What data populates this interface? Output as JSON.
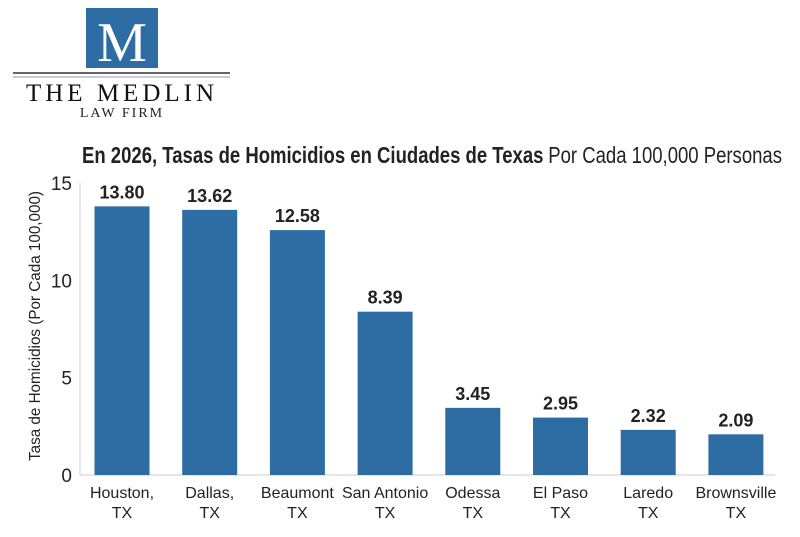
{
  "logo": {
    "monogram": "M",
    "name": "THE MEDLIN",
    "subtitle": "LAW FIRM",
    "color": "#2e6da4"
  },
  "chart_data": {
    "type": "bar",
    "title_bold": "En 2026, Tasas de Homicidios en Ciudades de Texas",
    "title_regular": "Por Cada 100,000 Personas",
    "xlabel": "",
    "ylabel": "Tasa de Homicidios (Por Cada 100,000)",
    "ylim": [
      0,
      15
    ],
    "yticks": [
      "0",
      "5",
      "10",
      "15"
    ],
    "grid": false,
    "bar_color": "#2e6da4",
    "categories": [
      [
        "Houston,",
        "TX"
      ],
      [
        "Dallas,",
        "TX"
      ],
      [
        "Beaumont",
        "TX"
      ],
      [
        "San Antonio",
        "TX"
      ],
      [
        "Odessa",
        "TX"
      ],
      [
        "El Paso",
        "TX"
      ],
      [
        "Laredo",
        "TX"
      ],
      [
        "Brownsville",
        "TX"
      ]
    ],
    "values": [
      13.8,
      13.62,
      12.58,
      8.39,
      3.45,
      2.95,
      2.32,
      2.09
    ],
    "data_labels": [
      "13.80",
      "13.62",
      "12.58",
      "8.39",
      "3.45",
      "2.95",
      "2.32",
      "2.09"
    ]
  }
}
